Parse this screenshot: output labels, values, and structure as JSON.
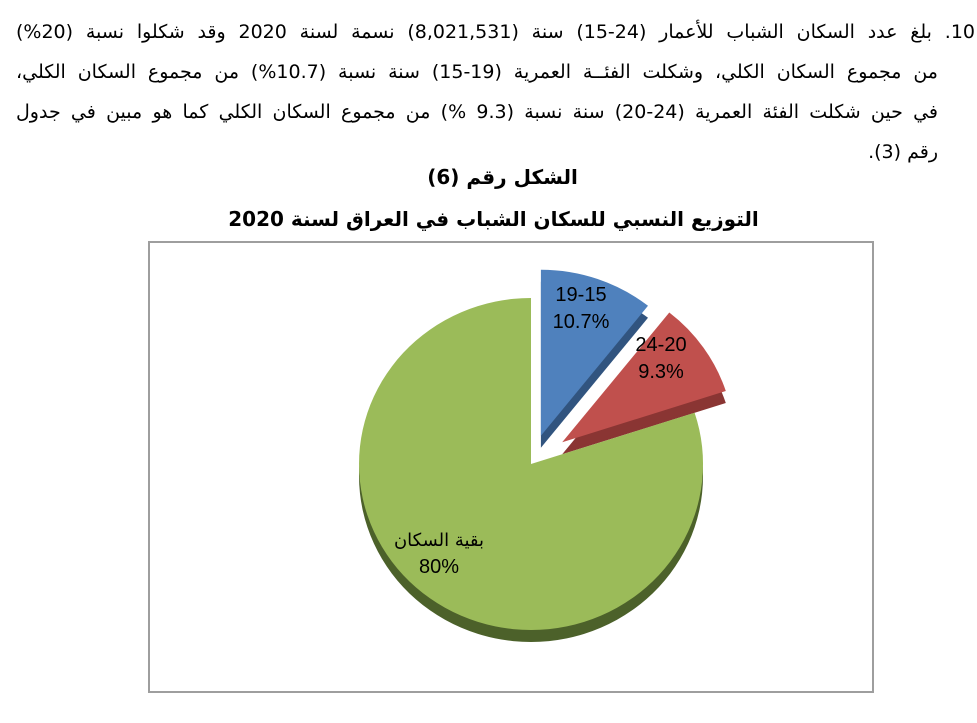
{
  "document": {
    "lines": [
      "10. بلغ عدد السكان الشباب للأعمار (24-15) سنة (8,021,531) نسمة لسنة 2020 وقد شكلوا نسبة (20%)",
      "من مجموع السكان الكلي، وشكلت الفئــة العمرية (19-15) سنة نسبة (10.7%) من مجموع السكان الكلي،",
      "في حين شكلت الفئة  العمرية (24-20) سنة نسبة (9.3 %) من مجموع السكان الكلي كما هو مبين في جدول",
      "رقم (3)."
    ],
    "figure_caption": "الشكل رقم  (6)"
  },
  "chart_data": {
    "type": "pie",
    "title": "التوزيع النسبي للسكان الشباب في العراق  لسنة 2020",
    "year": "2020",
    "legend": "none",
    "start_angle_deg": 0,
    "direction": "clockwise",
    "slices": [
      {
        "name": "age-15-19",
        "label": "19-15",
        "pct_label": "10.7%",
        "value": 10.7,
        "color": "#4F81BD",
        "side_color": "#31547F",
        "exploded": true
      },
      {
        "name": "age-20-24",
        "label": "24-20",
        "pct_label": "9.3%",
        "value": 9.3,
        "color": "#C0504D",
        "side_color": "#8A3533",
        "exploded": true
      },
      {
        "name": "rest-of-population",
        "label": "بقية السكان",
        "pct_label": "80%",
        "value": 80,
        "color": "#9BBB59",
        "side_color": "#4C612A",
        "exploded": false
      }
    ]
  }
}
